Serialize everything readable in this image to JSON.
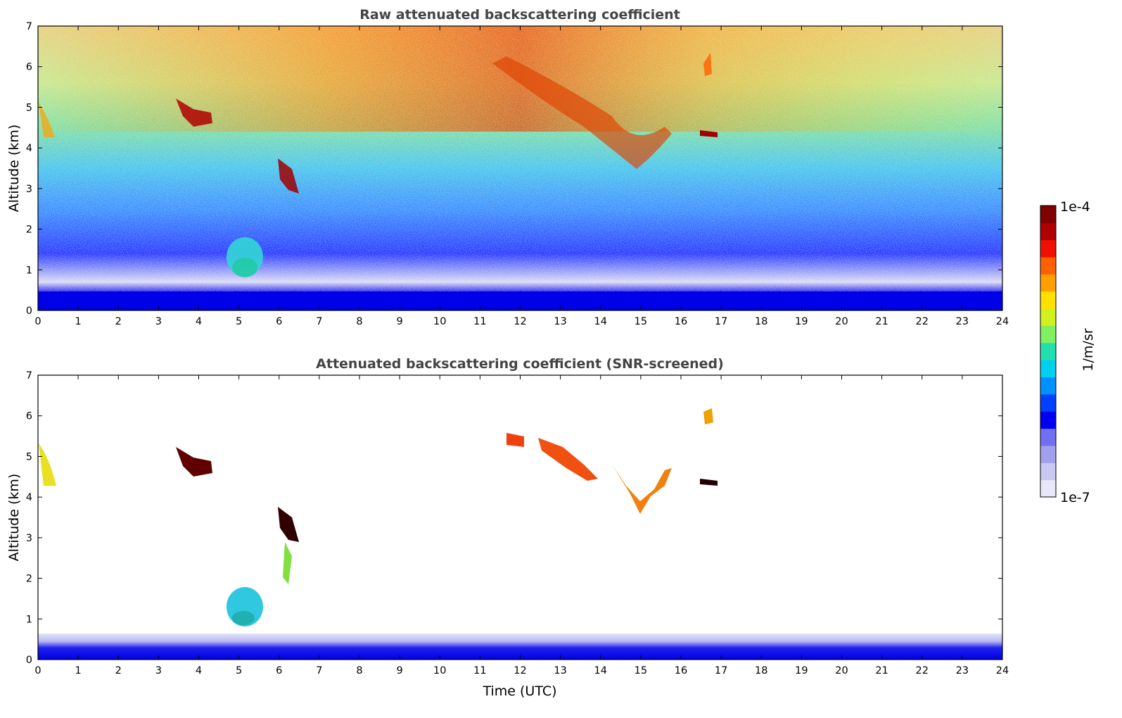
{
  "chart_data": [
    {
      "type": "heatmap",
      "title": "Raw attenuated backscattering coefficient",
      "xlabel": "",
      "ylabel": "Altitude (km)",
      "xlim": [
        0,
        24
      ],
      "ylim": [
        0,
        7
      ],
      "xticks": [
        "0",
        "1",
        "2",
        "3",
        "4",
        "5",
        "6",
        "7",
        "8",
        "9",
        "10",
        "11",
        "12",
        "13",
        "14",
        "15",
        "16",
        "17",
        "18",
        "19",
        "20",
        "21",
        "22",
        "23",
        "24"
      ],
      "yticks": [
        "0",
        "1",
        "2",
        "3",
        "4",
        "5",
        "6",
        "7"
      ],
      "grid": false,
      "color_scale": "log",
      "features": [
        {
          "name": "boundary layer",
          "x": [
            0,
            24
          ],
          "y": [
            0,
            0.4
          ],
          "value": "1e-7"
        },
        {
          "name": "low cloud",
          "x": [
            4.8,
            5.6
          ],
          "y": [
            0.9,
            1.8
          ],
          "value": "1e-6"
        },
        {
          "name": "mid-level cloud",
          "x": [
            3.5,
            4.4
          ],
          "y": [
            4.5,
            5.0
          ],
          "value": "1e-4"
        },
        {
          "name": "mid-level cloud",
          "x": [
            6.0,
            7.0
          ],
          "y": [
            2.7,
            3.8
          ],
          "value": "1e-4"
        },
        {
          "name": "elevated layer",
          "x": [
            11.5,
            16.0
          ],
          "y": [
            3.5,
            5.5
          ],
          "value": "3e-5"
        }
      ]
    },
    {
      "type": "heatmap",
      "title": "Attenuated backscattering coefficient (SNR-screened)",
      "xlabel": "Time (UTC)",
      "ylabel": "Altitude (km)",
      "xlim": [
        0,
        24
      ],
      "ylim": [
        0,
        7
      ],
      "xticks": [
        "0",
        "1",
        "2",
        "3",
        "4",
        "5",
        "6",
        "7",
        "8",
        "9",
        "10",
        "11",
        "12",
        "13",
        "14",
        "15",
        "16",
        "17",
        "18",
        "19",
        "20",
        "21",
        "22",
        "23",
        "24"
      ],
      "yticks": [
        "0",
        "1",
        "2",
        "3",
        "4",
        "5",
        "6",
        "7"
      ],
      "grid": false,
      "color_scale": "log"
    }
  ],
  "colorbar": {
    "label": "1/m/sr",
    "max_label": "1e-4",
    "min_label": "1e-7",
    "colors": [
      "#e8e8f8",
      "#c8c8f0",
      "#a0a0ee",
      "#7070f0",
      "#0000f0",
      "#0040ff",
      "#0090ff",
      "#00d0f0",
      "#20e0b0",
      "#80f060",
      "#d0f020",
      "#ffe000",
      "#ffa000",
      "#ff6000",
      "#f01000",
      "#b00000",
      "#800000"
    ]
  }
}
